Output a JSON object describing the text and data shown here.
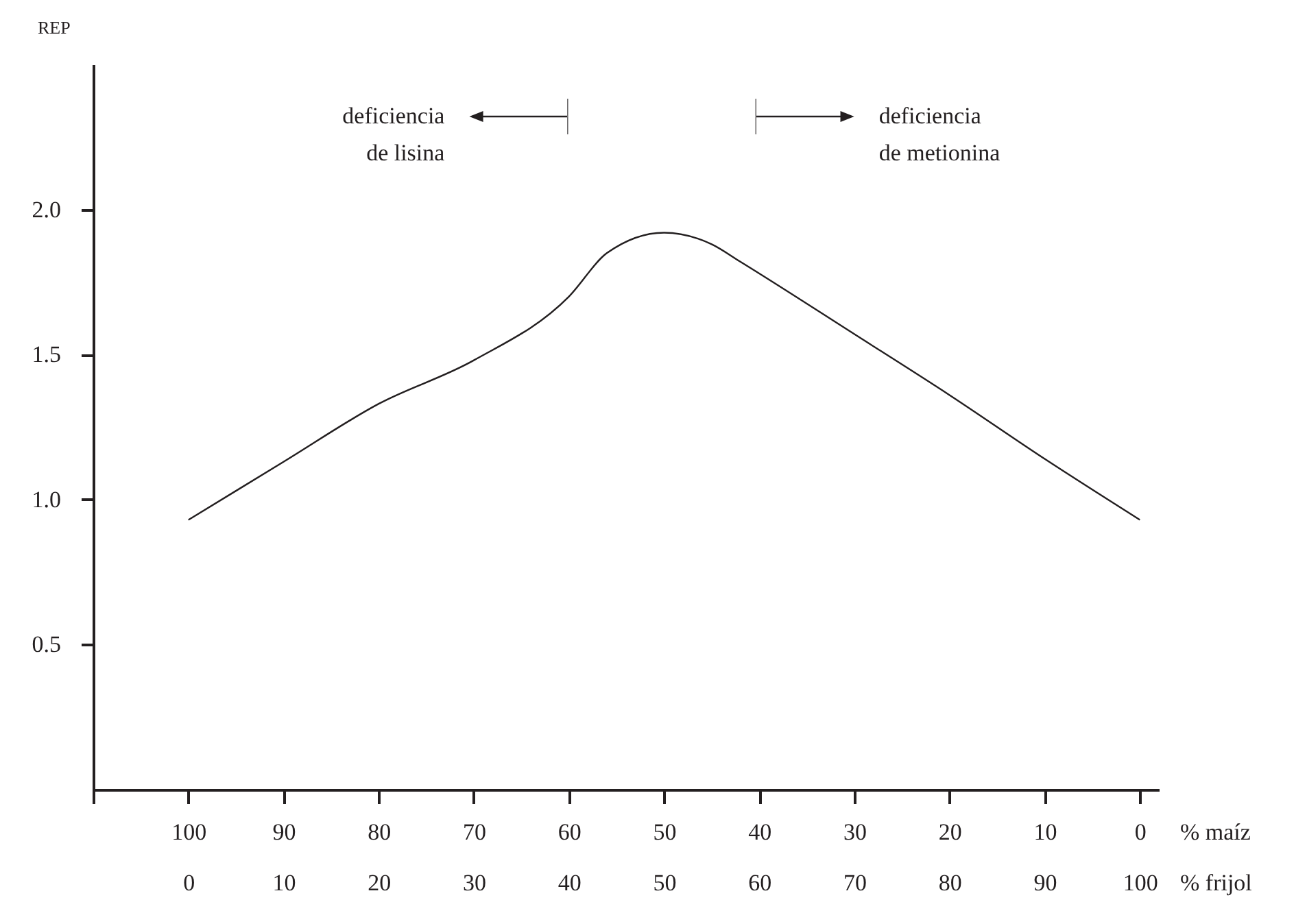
{
  "chart_data": {
    "type": "line",
    "ylabel": "REP",
    "xlabel": "% frijol",
    "x2label": "% maíz",
    "x": [
      0,
      10,
      20,
      30,
      40,
      44,
      50,
      55,
      58,
      70,
      80,
      90,
      100
    ],
    "series": [
      {
        "color": "#231f20",
        "values": [
          0.93,
          1.13,
          1.33,
          1.48,
          1.7,
          1.85,
          1.92,
          1.88,
          1.82,
          1.57,
          1.36,
          1.14,
          0.93
        ]
      }
    ],
    "xlim": [
      -10,
      102
    ],
    "xticks": [
      0,
      10,
      20,
      30,
      40,
      50,
      60,
      70,
      80,
      90,
      100
    ],
    "x2lim": [
      110,
      -2
    ],
    "x2ticks": [
      {
        "value": 110,
        "label": null
      },
      100,
      90,
      80,
      70,
      60,
      50,
      40,
      30,
      20,
      10,
      0
    ],
    "ylim": [
      0,
      2.5
    ],
    "yticks": [
      {
        "value": 0.5,
        "label": "0.5"
      },
      {
        "value": 1,
        "label": "1.0"
      },
      {
        "value": 1.5,
        "label": "1.5"
      },
      {
        "value": 2,
        "label": "2.0"
      }
    ],
    "annotations": [
      "deficiencia de lisina",
      "deficiencia de metionina"
    ],
    "grid": false,
    "legend": false,
    "marker": "none",
    "line_style": "solid"
  }
}
